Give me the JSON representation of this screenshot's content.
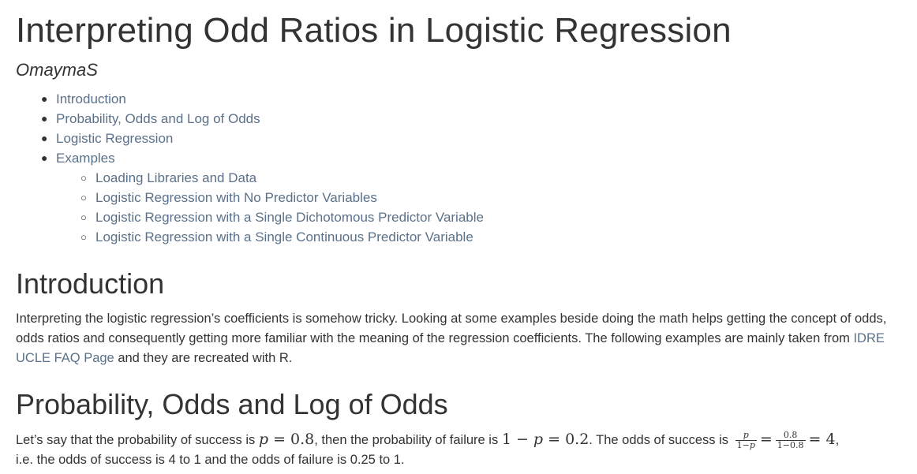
{
  "title": "Interpreting Odd Ratios in Logistic Regression",
  "author": "OmaymaS",
  "toc": {
    "items": [
      {
        "label": "Introduction",
        "level": 1
      },
      {
        "label": "Probability, Odds and Log of Odds",
        "level": 1
      },
      {
        "label": "Logistic Regression",
        "level": 1
      },
      {
        "label": "Examples",
        "level": 1
      },
      {
        "label": "Loading Libraries and Data",
        "level": 2
      },
      {
        "label": "Logistic Regression with No Predictor Variables",
        "level": 2
      },
      {
        "label": "Logistic Regression with a Single Dichotomous Predictor Variable",
        "level": 2
      },
      {
        "label": "Logistic Regression with a Single Continuous Predictor Variable",
        "level": 2
      }
    ]
  },
  "introduction": {
    "heading": "Introduction",
    "text_before_link": "Interpreting the logistic regression’s coefficients is somehow tricky. Looking at some examples beside doing the math helps getting the concept of odds, odds ratios and consequently getting more familiar with the meaning of the regression coefficients. The following examples are mainly taken from ",
    "link_text": "IDRE UCLE FAQ Page",
    "text_after_link": " and they are recreated with R."
  },
  "probability": {
    "heading": "Probability, Odds and Log of Odds",
    "t1": "Let’s say that the probability of success is ",
    "m1_var": "p",
    "m1_rest": " = 0.8",
    "t2": ", then the probability of failure is ",
    "m2_a": "1 − ",
    "m2_var": "p",
    "m2_rest": " = 0.2",
    "t3": ". The odds of success is ",
    "frac1_num": "p",
    "frac1_den_a": "1−",
    "frac1_den_var": "p",
    "eq1": "=",
    "frac2_num": "0.8",
    "frac2_den": "1−0.8",
    "m3": "= 4",
    "t4": ",",
    "t5": "i.e. the odds of success is 4 to 1 and the odds of failure is 0.25 to 1."
  },
  "colors": {
    "text": "#333333",
    "link": "#5a7189",
    "background": "#ffffff"
  }
}
